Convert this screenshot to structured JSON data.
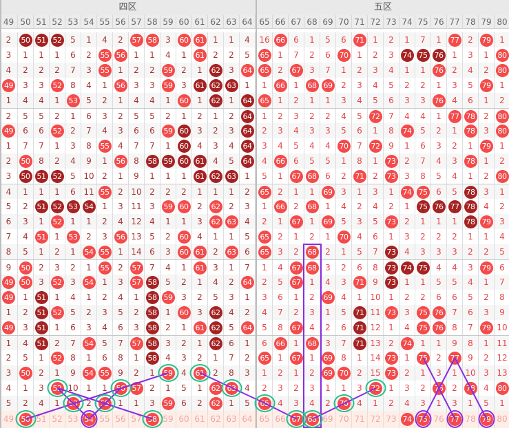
{
  "zones": [
    {
      "label": "四区",
      "from": 49,
      "to": 64
    },
    {
      "label": "五区",
      "from": 65,
      "to": 80
    }
  ],
  "columns": [
    49,
    50,
    51,
    52,
    53,
    54,
    55,
    56,
    57,
    58,
    59,
    60,
    61,
    62,
    63,
    64,
    65,
    66,
    67,
    68,
    69,
    70,
    71,
    72,
    73,
    74,
    75,
    76,
    77,
    78,
    79,
    80
  ],
  "colors": {
    "ball_hit": "#f44a4a",
    "ball_repeat": "#a52222",
    "text_zone4": "#a83232",
    "text_zone5": "#e84444",
    "highlight_circle": "#22c08a",
    "trend_line": "#8a2be2"
  },
  "rows": [
    "2 50d 51d 52d 5 1 4 2 57b 58b 3 60b 61b 1 1 4 16 66b 6 1 5 6 71b 1 2 1 7 1 77b 2 79b 1",
    "3 1 1 1 6 2 55b 56b 1 1 4 1 61b 2 2 5 65b 1 7 2 6 70b 1 2 3 74d 75d 76d 1 3 1 80b",
    "4 2 2 2 7 3 55b 1 2 2 59b 2 1 62d 3 64b 65b 2 67b 3 7 1 2 3 4 1 1 76b 2 4 2 80b",
    "49b 3 3 52b 8 4 1 56b 3 3 59b 3 61d 62d 63d 1 1 66b 1 68b 69b 2 3 4 5 2 2 1 3 5 79b 1",
    "1 4 4 1 53b 5 2 1 4 4 1 60b 1 62d 1 64d 65b 1 2 1 1 3 4 5 6 3 3 76b 4 6 1 2",
    "2 5 5 2 1 6 3 2 5 5 2 1 2 1 2 64d 1 2 3 2 2 4 5 72b 7 4 4 1 77b 78b 2 80b",
    "49b 6 6 52b 2 7 4 3 6 6 59b 60d 3 2 3 64d 2 3 4 3 3 5 6 1 8 74b 5 2 1 78b 3 80b",
    "1 7 7 1 3 8 55b 4 7 7 1 60d 4 3 4 64d 3 4 5 4 4 70b 7 72b 9 1 6 3 2 1 79b 1",
    "2 50b 8 2 4 9 1 56b 8 58d 59d 60d 61d 4 5 64d 4 66b 6 5 5 1 8 1 73b 2 7 4 3 78b 1 2",
    "3 50d 51d 52d 5 10 2 1 9 1 1 1 61d 62d 63d 1 5 1 67b 68b 6 2 71b 2 73b 3 8 5 4 1 2 80b",
    "4 1 1 1 6 11 55b 2 10 2 2 2 1 1 1 2 65b 2 1 1 69b 3 1 3 1 74b 75b 6 5 78d 3 1",
    "5 2 51d 52d 53d 54d 1 3 11 3 59b 60b 2 62b 2 3 1 66b 2 68b 1 4 2 4 2 1 75d 76d 77d 78d 4 2",
    "6 3 1 52b 1 1 2 4 12 4 1 1 3 62b 63b 4 2 1 67b 1 69b 5 3 5 73b 2 1 1 1 78d 79b 3",
    "7 4 51b 1 53b 2 3 56b 13 5 2 60b 4 1 1 5 65b 2 1 2 1 70b 4 6 1 3 2 2 2 1 1 4",
    "8 5 1 2 1 54b 55b 1 14 6 3 60b 61b 2 63b 6 65b 3 2 68b 2 1 5 7 73d 4 3 3 3 2 2 5",
    "9 50b 2 3 2 1 55b 2 57b 7 4 1 61b 3 1 7 1 4 67b 68b 3 2 6 8 73d 74d 75d 4 4 3 79b 6",
    "49b 50b 3 52b 3 54b 1 3 57b 58d 5 2 1 4 2 64b 2 5 67b 1 4 3 71b 9 73d 1 1 5 5 4 1 7",
    "49b 1 51d 1 4 1 2 4 1 58d 59b 3 2 5 3 1 3 6 1 2 69b 4 1 10 1 2 2 6 6 5 2 8",
    "1 2 51d 52b 5 2 3 5 2 58d 1 60b 3 62d 4 2 4 7 2 3 1 5 71d 11 73b 3 75b 76b 7 6 3 9",
    "49b 3 51d 1 6 3 4 6 3 58d 2 1 61b 62d 5 64b 5 8 67b 4 2 6 71d 12 1 4 75b 76b 8 7 79b 10",
    "1 4 51d 2 7 54b 5 7 57b 58d 3 2 1 62d 6 1 6 66b 1 68b 3 7 71d 13 2 74b 1 1 9 8 1 11",
    "2 5 1 52b 8 1 6 8 1 58d 4 3 2 1 7 2 65b 1 67b 1 69b 8 1 14 73b 1 75b 2 77b 9 2 12",
    "3 50b 2 1 9 54b 55b 9 2 1 59b 4 61b 2 8 3 1 2 1 2 69b 70b 2 15 73b 2 1 3 1 10 3 13",
    "4 1 3 52b 10 1 1 56b 57b 2 1 5 1 62b 63b 4 2 3 2 3 1 1 3 72b 1 3 2 76b 2 78b 4 80b",
    "5 2 4 1 53b 2 55b 1 1 3 59b 6 2 62b 1 5 65b 4 3 4 2 70b 4 1 2 4 3 1 3 1 5 1"
  ],
  "selection_row": {
    "selected": [
      50,
      54,
      58,
      67,
      68,
      74,
      75,
      77,
      79
    ]
  },
  "annotations": {
    "green_circles": [
      {
        "row": 23,
        "col": 59
      },
      {
        "row": 23,
        "col": 61
      },
      {
        "row": 24,
        "col": 52
      },
      {
        "row": 24,
        "col": 56
      },
      {
        "row": 24,
        "col": 63
      },
      {
        "row": 24,
        "col": 72
      },
      {
        "row": 25,
        "col": 53
      },
      {
        "row": 25,
        "col": 55
      },
      {
        "row": 25,
        "col": 65
      },
      {
        "row": 25,
        "col": 70
      },
      {
        "row": 26,
        "col": 50
      },
      {
        "row": 26,
        "col": 58
      },
      {
        "row": 26,
        "col": 67
      },
      {
        "row": 26,
        "col": 68
      }
    ],
    "purple_circles": [
      {
        "row": 26,
        "col": 54
      },
      {
        "row": 26,
        "col": 75
      },
      {
        "row": 26,
        "col": 77
      },
      {
        "row": 26,
        "col": 79
      }
    ],
    "lines": [
      [
        {
          "row": 26,
          "col": 50
        },
        {
          "row": 23,
          "col": 59
        }
      ],
      [
        {
          "row": 24,
          "col": 52
        },
        {
          "row": 26,
          "col": 58
        }
      ],
      [
        {
          "row": 24,
          "col": 52
        },
        {
          "row": 26,
          "col": 54
        }
      ],
      [
        {
          "row": 26,
          "col": 54
        },
        {
          "row": 24,
          "col": 56
        }
      ],
      [
        {
          "row": 23,
          "col": 61
        },
        {
          "row": 25,
          "col": 65
        }
      ],
      [
        {
          "row": 25,
          "col": 65
        },
        {
          "row": 26,
          "col": 67
        }
      ],
      [
        {
          "row": 26,
          "col": 68
        },
        {
          "row": 24,
          "col": 72
        }
      ],
      [
        {
          "row": 22,
          "col": 75
        },
        {
          "row": 26,
          "col": 77
        }
      ],
      [
        {
          "row": 22,
          "col": 77
        },
        {
          "row": 26,
          "col": 75
        }
      ],
      [
        {
          "row": 22,
          "col": 77
        },
        {
          "row": 26,
          "col": 79
        }
      ]
    ],
    "column_box": {
      "col": 68,
      "from_row": 15,
      "to_row": 26
    }
  }
}
